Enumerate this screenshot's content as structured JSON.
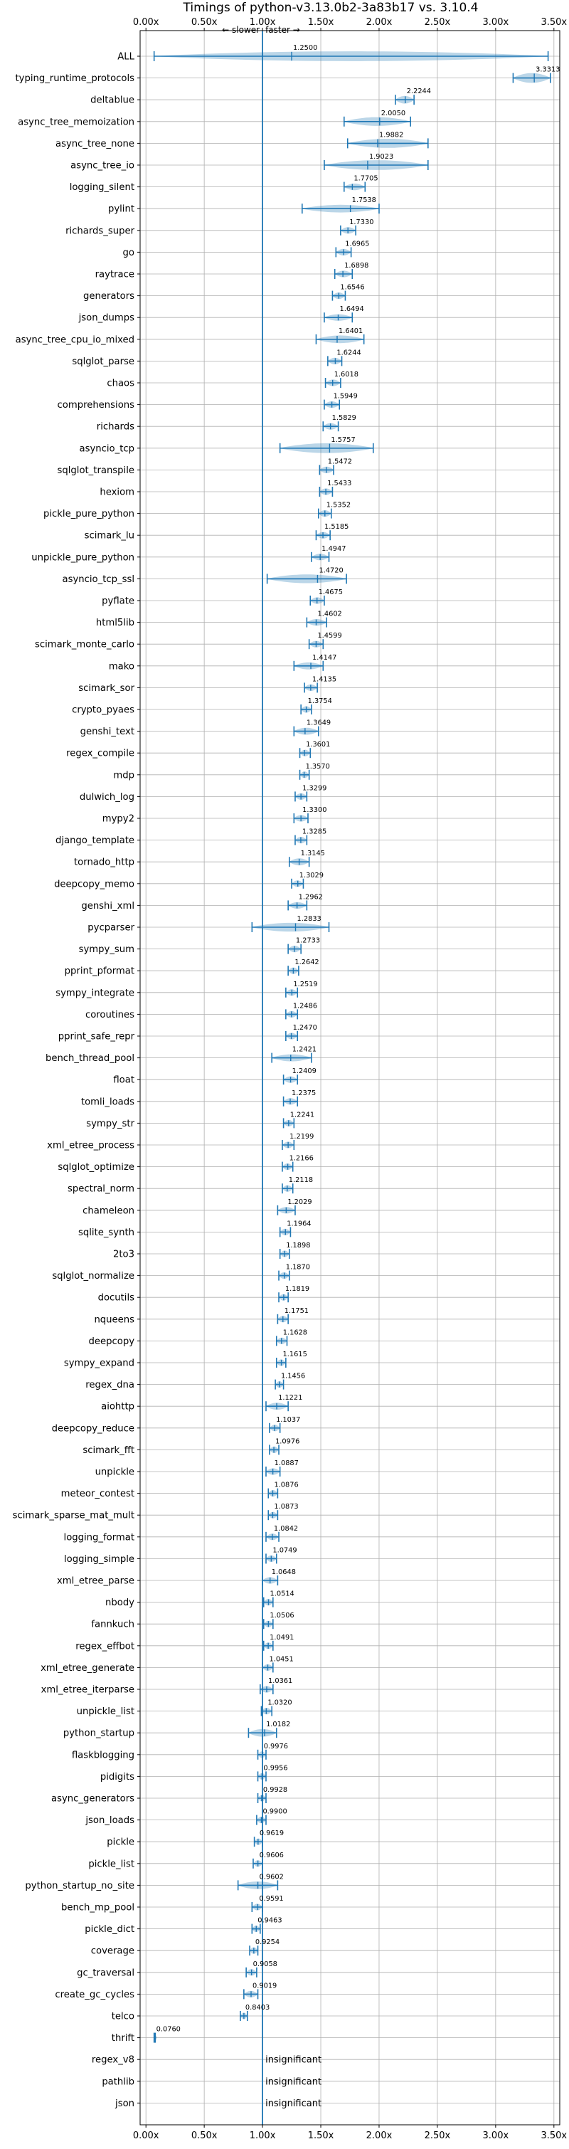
{
  "chart_data": {
    "type": "violin",
    "title": "Timings of python-v3.13.0b2-3a83b17 vs. 3.10.4",
    "xlim": [
      -0.05,
      3.55
    ],
    "xticks": [
      "0.00x",
      "0.50x",
      "1.00x",
      "1.50x",
      "2.00x",
      "2.50x",
      "3.00x",
      "3.50x"
    ],
    "xtick_values": [
      0,
      0.5,
      1.0,
      1.5,
      2.0,
      2.5,
      3.0,
      3.5
    ],
    "reference_line": 1.0,
    "direction_labels": {
      "slower": "← slower",
      "faster": "faster →"
    },
    "insignificant_label": "insignificant",
    "grid": true,
    "colors": {
      "violin": "#1f77b4",
      "faster_marker": "#1f77b4",
      "slower_marker": "#d62728",
      "grid": "#b0b0b0"
    },
    "benchmarks": [
      {
        "name": "ALL",
        "value": 1.25,
        "label": "1.2500",
        "lo": 0.07,
        "hi": 3.45,
        "width": 0.45
      },
      {
        "name": "typing_runtime_protocols",
        "value": 3.3313,
        "label": "3.3313",
        "lo": 3.15,
        "hi": 3.47,
        "width": 0.45
      },
      {
        "name": "deltablue",
        "value": 2.2244,
        "label": "2.2244",
        "lo": 2.14,
        "hi": 2.3,
        "width": 0.35
      },
      {
        "name": "async_tree_memoization",
        "value": 2.005,
        "label": "2.0050",
        "lo": 1.7,
        "hi": 2.27,
        "width": 0.4
      },
      {
        "name": "async_tree_none",
        "value": 1.9882,
        "label": "1.9882",
        "lo": 1.73,
        "hi": 2.42,
        "width": 0.42
      },
      {
        "name": "async_tree_io",
        "value": 1.9023,
        "label": "1.9023",
        "lo": 1.53,
        "hi": 2.42,
        "width": 0.45
      },
      {
        "name": "logging_silent",
        "value": 1.7705,
        "label": "1.7705",
        "lo": 1.7,
        "hi": 1.88,
        "width": 0.3
      },
      {
        "name": "pylint",
        "value": 1.7538,
        "label": "1.7538",
        "lo": 1.34,
        "hi": 2.0,
        "width": 0.35
      },
      {
        "name": "richards_super",
        "value": 1.733,
        "label": "1.7330",
        "lo": 1.67,
        "hi": 1.8,
        "width": 0.3
      },
      {
        "name": "go",
        "value": 1.6965,
        "label": "1.6965",
        "lo": 1.63,
        "hi": 1.76,
        "width": 0.3
      },
      {
        "name": "raytrace",
        "value": 1.6898,
        "label": "1.6898",
        "lo": 1.62,
        "hi": 1.77,
        "width": 0.3
      },
      {
        "name": "generators",
        "value": 1.6546,
        "label": "1.6546",
        "lo": 1.6,
        "hi": 1.71,
        "width": 0.3
      },
      {
        "name": "json_dumps",
        "value": 1.6494,
        "label": "1.6494",
        "lo": 1.53,
        "hi": 1.77,
        "width": 0.3
      },
      {
        "name": "async_tree_cpu_io_mixed",
        "value": 1.6401,
        "label": "1.6401",
        "lo": 1.46,
        "hi": 1.87,
        "width": 0.35
      },
      {
        "name": "sqlglot_parse",
        "value": 1.6244,
        "label": "1.6244",
        "lo": 1.56,
        "hi": 1.68,
        "width": 0.3
      },
      {
        "name": "chaos",
        "value": 1.6018,
        "label": "1.6018",
        "lo": 1.54,
        "hi": 1.67,
        "width": 0.3
      },
      {
        "name": "comprehensions",
        "value": 1.5949,
        "label": "1.5949",
        "lo": 1.53,
        "hi": 1.66,
        "width": 0.3
      },
      {
        "name": "richards",
        "value": 1.5829,
        "label": "1.5829",
        "lo": 1.52,
        "hi": 1.65,
        "width": 0.3
      },
      {
        "name": "asyncio_tcp",
        "value": 1.5757,
        "label": "1.5757",
        "lo": 1.15,
        "hi": 1.95,
        "width": 0.45
      },
      {
        "name": "sqlglot_transpile",
        "value": 1.5472,
        "label": "1.5472",
        "lo": 1.49,
        "hi": 1.61,
        "width": 0.3
      },
      {
        "name": "hexiom",
        "value": 1.5433,
        "label": "1.5433",
        "lo": 1.49,
        "hi": 1.6,
        "width": 0.3
      },
      {
        "name": "pickle_pure_python",
        "value": 1.5352,
        "label": "1.5352",
        "lo": 1.48,
        "hi": 1.59,
        "width": 0.3
      },
      {
        "name": "scimark_lu",
        "value": 1.5185,
        "label": "1.5185",
        "lo": 1.46,
        "hi": 1.58,
        "width": 0.3
      },
      {
        "name": "unpickle_pure_python",
        "value": 1.4947,
        "label": "1.4947",
        "lo": 1.42,
        "hi": 1.57,
        "width": 0.3
      },
      {
        "name": "asyncio_tcp_ssl",
        "value": 1.472,
        "label": "1.4720",
        "lo": 1.04,
        "hi": 1.72,
        "width": 0.4
      },
      {
        "name": "pyflate",
        "value": 1.4675,
        "label": "1.4675",
        "lo": 1.41,
        "hi": 1.53,
        "width": 0.3
      },
      {
        "name": "html5lib",
        "value": 1.4602,
        "label": "1.4602",
        "lo": 1.38,
        "hi": 1.55,
        "width": 0.3
      },
      {
        "name": "scimark_monte_carlo",
        "value": 1.4599,
        "label": "1.4599",
        "lo": 1.4,
        "hi": 1.52,
        "width": 0.3
      },
      {
        "name": "mako",
        "value": 1.4147,
        "label": "1.4147",
        "lo": 1.27,
        "hi": 1.52,
        "width": 0.32
      },
      {
        "name": "scimark_sor",
        "value": 1.4135,
        "label": "1.4135",
        "lo": 1.36,
        "hi": 1.47,
        "width": 0.3
      },
      {
        "name": "crypto_pyaes",
        "value": 1.3754,
        "label": "1.3754",
        "lo": 1.33,
        "hi": 1.42,
        "width": 0.3
      },
      {
        "name": "genshi_text",
        "value": 1.3649,
        "label": "1.3649",
        "lo": 1.27,
        "hi": 1.48,
        "width": 0.32
      },
      {
        "name": "regex_compile",
        "value": 1.3601,
        "label": "1.3601",
        "lo": 1.32,
        "hi": 1.41,
        "width": 0.3
      },
      {
        "name": "mdp",
        "value": 1.357,
        "label": "1.3570",
        "lo": 1.32,
        "hi": 1.4,
        "width": 0.3
      },
      {
        "name": "dulwich_log",
        "value": 1.3299,
        "label": "1.3299",
        "lo": 1.28,
        "hi": 1.38,
        "width": 0.3
      },
      {
        "name": "mypy2",
        "value": 1.33,
        "label": "1.3300",
        "lo": 1.27,
        "hi": 1.39,
        "width": 0.3
      },
      {
        "name": "django_template",
        "value": 1.3285,
        "label": "1.3285",
        "lo": 1.28,
        "hi": 1.38,
        "width": 0.3
      },
      {
        "name": "tornado_http",
        "value": 1.3145,
        "label": "1.3145",
        "lo": 1.23,
        "hi": 1.4,
        "width": 0.32
      },
      {
        "name": "deepcopy_memo",
        "value": 1.3029,
        "label": "1.3029",
        "lo": 1.25,
        "hi": 1.35,
        "width": 0.3
      },
      {
        "name": "genshi_xml",
        "value": 1.2962,
        "label": "1.2962",
        "lo": 1.22,
        "hi": 1.38,
        "width": 0.3
      },
      {
        "name": "pycparser",
        "value": 1.2833,
        "label": "1.2833",
        "lo": 0.91,
        "hi": 1.57,
        "width": 0.4
      },
      {
        "name": "sympy_sum",
        "value": 1.2733,
        "label": "1.2733",
        "lo": 1.22,
        "hi": 1.33,
        "width": 0.3
      },
      {
        "name": "pprint_pformat",
        "value": 1.2642,
        "label": "1.2642",
        "lo": 1.22,
        "hi": 1.31,
        "width": 0.3
      },
      {
        "name": "sympy_integrate",
        "value": 1.2519,
        "label": "1.2519",
        "lo": 1.2,
        "hi": 1.3,
        "width": 0.3
      },
      {
        "name": "coroutines",
        "value": 1.2486,
        "label": "1.2486",
        "lo": 1.2,
        "hi": 1.3,
        "width": 0.3
      },
      {
        "name": "pprint_safe_repr",
        "value": 1.247,
        "label": "1.2470",
        "lo": 1.2,
        "hi": 1.3,
        "width": 0.3
      },
      {
        "name": "bench_thread_pool",
        "value": 1.2421,
        "label": "1.2421",
        "lo": 1.08,
        "hi": 1.42,
        "width": 0.32
      },
      {
        "name": "float",
        "value": 1.2409,
        "label": "1.2409",
        "lo": 1.18,
        "hi": 1.3,
        "width": 0.3
      },
      {
        "name": "tomli_loads",
        "value": 1.2375,
        "label": "1.2375",
        "lo": 1.18,
        "hi": 1.3,
        "width": 0.3
      },
      {
        "name": "sympy_str",
        "value": 1.2241,
        "label": "1.2241",
        "lo": 1.18,
        "hi": 1.27,
        "width": 0.3
      },
      {
        "name": "xml_etree_process",
        "value": 1.2199,
        "label": "1.2199",
        "lo": 1.17,
        "hi": 1.27,
        "width": 0.3
      },
      {
        "name": "sqlglot_optimize",
        "value": 1.2166,
        "label": "1.2166",
        "lo": 1.17,
        "hi": 1.26,
        "width": 0.3
      },
      {
        "name": "spectral_norm",
        "value": 1.2118,
        "label": "1.2118",
        "lo": 1.17,
        "hi": 1.26,
        "width": 0.3
      },
      {
        "name": "chameleon",
        "value": 1.2029,
        "label": "1.2029",
        "lo": 1.13,
        "hi": 1.28,
        "width": 0.3
      },
      {
        "name": "sqlite_synth",
        "value": 1.1964,
        "label": "1.1964",
        "lo": 1.15,
        "hi": 1.24,
        "width": 0.3
      },
      {
        "name": "2to3",
        "value": 1.1898,
        "label": "1.1898",
        "lo": 1.15,
        "hi": 1.23,
        "width": 0.3
      },
      {
        "name": "sqlglot_normalize",
        "value": 1.187,
        "label": "1.1870",
        "lo": 1.14,
        "hi": 1.23,
        "width": 0.3
      },
      {
        "name": "docutils",
        "value": 1.1819,
        "label": "1.1819",
        "lo": 1.14,
        "hi": 1.22,
        "width": 0.3
      },
      {
        "name": "nqueens",
        "value": 1.1751,
        "label": "1.1751",
        "lo": 1.13,
        "hi": 1.22,
        "width": 0.3
      },
      {
        "name": "deepcopy",
        "value": 1.1628,
        "label": "1.1628",
        "lo": 1.12,
        "hi": 1.21,
        "width": 0.3
      },
      {
        "name": "sympy_expand",
        "value": 1.1615,
        "label": "1.1615",
        "lo": 1.12,
        "hi": 1.2,
        "width": 0.3
      },
      {
        "name": "regex_dna",
        "value": 1.1456,
        "label": "1.1456",
        "lo": 1.11,
        "hi": 1.18,
        "width": 0.3
      },
      {
        "name": "aiohttp",
        "value": 1.1221,
        "label": "1.1221",
        "lo": 1.03,
        "hi": 1.22,
        "width": 0.32
      },
      {
        "name": "deepcopy_reduce",
        "value": 1.1037,
        "label": "1.1037",
        "lo": 1.06,
        "hi": 1.15,
        "width": 0.3
      },
      {
        "name": "scimark_fft",
        "value": 1.0976,
        "label": "1.0976",
        "lo": 1.06,
        "hi": 1.14,
        "width": 0.3
      },
      {
        "name": "unpickle",
        "value": 1.0887,
        "label": "1.0887",
        "lo": 1.03,
        "hi": 1.15,
        "width": 0.3
      },
      {
        "name": "meteor_contest",
        "value": 1.0876,
        "label": "1.0876",
        "lo": 1.05,
        "hi": 1.13,
        "width": 0.3
      },
      {
        "name": "scimark_sparse_mat_mult",
        "value": 1.0873,
        "label": "1.0873",
        "lo": 1.05,
        "hi": 1.13,
        "width": 0.3
      },
      {
        "name": "logging_format",
        "value": 1.0842,
        "label": "1.0842",
        "lo": 1.03,
        "hi": 1.14,
        "width": 0.3
      },
      {
        "name": "logging_simple",
        "value": 1.0749,
        "label": "1.0749",
        "lo": 1.03,
        "hi": 1.12,
        "width": 0.3
      },
      {
        "name": "xml_etree_parse",
        "value": 1.0648,
        "label": "1.0648",
        "lo": 1.0,
        "hi": 1.13,
        "width": 0.3
      },
      {
        "name": "nbody",
        "value": 1.0514,
        "label": "1.0514",
        "lo": 1.01,
        "hi": 1.09,
        "width": 0.3
      },
      {
        "name": "fannkuch",
        "value": 1.0506,
        "label": "1.0506",
        "lo": 1.01,
        "hi": 1.09,
        "width": 0.3
      },
      {
        "name": "regex_effbot",
        "value": 1.0491,
        "label": "1.0491",
        "lo": 1.01,
        "hi": 1.09,
        "width": 0.3
      },
      {
        "name": "xml_etree_generate",
        "value": 1.0451,
        "label": "1.0451",
        "lo": 1.0,
        "hi": 1.09,
        "width": 0.3
      },
      {
        "name": "xml_etree_iterparse",
        "value": 1.0361,
        "label": "1.0361",
        "lo": 0.98,
        "hi": 1.09,
        "width": 0.3
      },
      {
        "name": "unpickle_list",
        "value": 1.032,
        "label": "1.0320",
        "lo": 0.99,
        "hi": 1.08,
        "width": 0.3
      },
      {
        "name": "python_startup",
        "value": 1.0182,
        "label": "1.0182",
        "lo": 0.88,
        "hi": 1.12,
        "width": 0.35
      },
      {
        "name": "flaskblogging",
        "value": 0.9976,
        "label": "0.9976",
        "lo": 0.96,
        "hi": 1.03,
        "width": 0.3
      },
      {
        "name": "pidigits",
        "value": 0.9956,
        "label": "0.9956",
        "lo": 0.96,
        "hi": 1.03,
        "width": 0.3
      },
      {
        "name": "async_generators",
        "value": 0.9928,
        "label": "0.9928",
        "lo": 0.96,
        "hi": 1.03,
        "width": 0.3
      },
      {
        "name": "json_loads",
        "value": 0.99,
        "label": "0.9900",
        "lo": 0.95,
        "hi": 1.03,
        "width": 0.3
      },
      {
        "name": "pickle",
        "value": 0.9619,
        "label": "0.9619",
        "lo": 0.93,
        "hi": 1.0,
        "width": 0.3
      },
      {
        "name": "pickle_list",
        "value": 0.9606,
        "label": "0.9606",
        "lo": 0.92,
        "hi": 1.0,
        "width": 0.3
      },
      {
        "name": "python_startup_no_site",
        "value": 0.9602,
        "label": "0.9602",
        "lo": 0.79,
        "hi": 1.13,
        "width": 0.35
      },
      {
        "name": "bench_mp_pool",
        "value": 0.9591,
        "label": "0.9591",
        "lo": 0.91,
        "hi": 1.0,
        "width": 0.3
      },
      {
        "name": "pickle_dict",
        "value": 0.9463,
        "label": "0.9463",
        "lo": 0.91,
        "hi": 0.98,
        "width": 0.3
      },
      {
        "name": "coverage",
        "value": 0.9254,
        "label": "0.9254",
        "lo": 0.89,
        "hi": 0.96,
        "width": 0.3
      },
      {
        "name": "gc_traversal",
        "value": 0.9058,
        "label": "0.9058",
        "lo": 0.86,
        "hi": 0.95,
        "width": 0.3
      },
      {
        "name": "create_gc_cycles",
        "value": 0.9019,
        "label": "0.9019",
        "lo": 0.84,
        "hi": 0.96,
        "width": 0.3
      },
      {
        "name": "telco",
        "value": 0.8403,
        "label": "0.8403",
        "lo": 0.81,
        "hi": 0.87,
        "width": 0.3
      },
      {
        "name": "thrift",
        "value": 0.076,
        "label": "0.0760",
        "lo": 0.07,
        "hi": 0.08,
        "width": 0.2
      },
      {
        "name": "regex_v8",
        "value": null,
        "label": "insignificant"
      },
      {
        "name": "pathlib",
        "value": null,
        "label": "insignificant"
      },
      {
        "name": "json",
        "value": null,
        "label": "insignificant"
      }
    ]
  }
}
